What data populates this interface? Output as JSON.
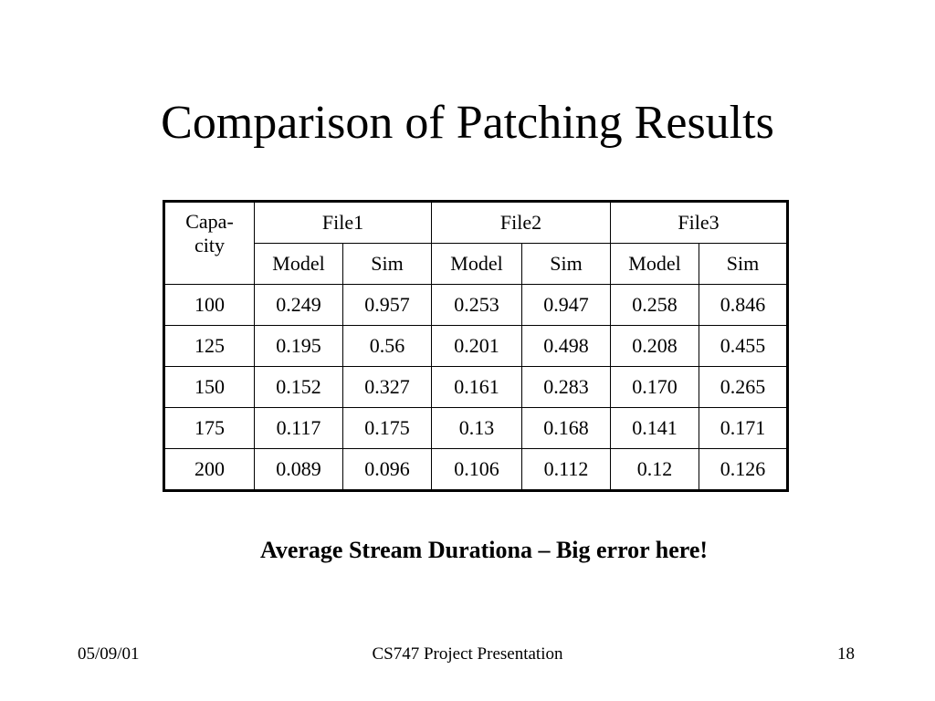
{
  "title": "Comparison of Patching Results",
  "table": {
    "corner_lines": [
      "Capa-",
      "city"
    ],
    "groups": [
      "File1",
      "File2",
      "File3"
    ],
    "subheaders": [
      "Model",
      "Sim",
      "Model",
      "Sim",
      "Model",
      "Sim"
    ],
    "rows": [
      [
        "100",
        "0.249",
        "0.957",
        "0.253",
        "0.947",
        "0.258",
        "0.846"
      ],
      [
        "125",
        "0.195",
        "0.56",
        "0.201",
        "0.498",
        "0.208",
        "0.455"
      ],
      [
        "150",
        "0.152",
        "0.327",
        "0.161",
        "0.283",
        "0.170",
        "0.265"
      ],
      [
        "175",
        "0.117",
        "0.175",
        "0.13",
        "0.168",
        "0.141",
        "0.171"
      ],
      [
        "200",
        "0.089",
        "0.096",
        "0.106",
        "0.112",
        "0.12",
        "0.126"
      ]
    ]
  },
  "caption": "Average Stream Durationa – Big error here!",
  "footer": {
    "date": "05/09/01",
    "center": "CS747 Project Presentation",
    "page": "18"
  }
}
